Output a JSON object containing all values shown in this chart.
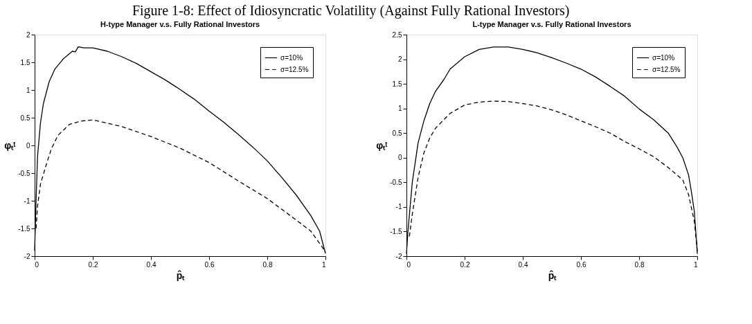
{
  "chart_data": [
    {
      "type": "line",
      "title": "H-type Manager v.s. Fully Rational Investors",
      "annotations": [
        "Figure 1-8: Effect of Idiosyncratic Volatility (Against Fully Rational Investors)"
      ],
      "xlabel": "p̂ₜ",
      "ylabel": "φₜᵗ",
      "xlim": [
        0,
        1
      ],
      "xticks": [
        0,
        0.2,
        0.4,
        0.6,
        0.8,
        1
      ],
      "ylim": [
        -2,
        2
      ],
      "yticks": [
        -2,
        -1.5,
        -1,
        -0.5,
        0,
        0.5,
        1,
        1.5,
        2
      ],
      "grid": false,
      "legend": "top right",
      "marker": "none",
      "series": [
        {
          "name": "σ=10%",
          "color": "#000000",
          "line_style": "solid",
          "x": [
            0,
            0.005,
            0.01,
            0.02,
            0.03,
            0.05,
            0.07,
            0.1,
            0.13,
            0.14,
            0.15,
            0.17,
            0.2,
            0.25,
            0.3,
            0.35,
            0.4,
            0.45,
            0.5,
            0.55,
            0.6,
            0.65,
            0.7,
            0.75,
            0.8,
            0.85,
            0.9,
            0.95,
            0.98,
            1.0
          ],
          "values": [
            -1.9,
            -1.0,
            -0.2,
            0.4,
            0.75,
            1.15,
            1.38,
            1.57,
            1.7,
            1.69,
            1.78,
            1.76,
            1.76,
            1.7,
            1.6,
            1.48,
            1.33,
            1.18,
            1.01,
            0.83,
            0.62,
            0.42,
            0.2,
            -0.03,
            -0.28,
            -0.58,
            -0.9,
            -1.27,
            -1.55,
            -1.95
          ]
        },
        {
          "name": "σ=12.5%",
          "color": "#000000",
          "line_style": "dashed",
          "x": [
            0.005,
            0.01,
            0.02,
            0.04,
            0.057,
            0.08,
            0.12,
            0.16,
            0.2,
            0.3,
            0.4,
            0.5,
            0.6,
            0.7,
            0.8,
            0.9,
            0.95,
            1.0
          ],
          "values": [
            -1.5,
            -1.1,
            -0.7,
            -0.35,
            -0.07,
            0.18,
            0.38,
            0.44,
            0.46,
            0.34,
            0.16,
            -0.05,
            -0.31,
            -0.64,
            -0.96,
            -1.35,
            -1.55,
            -1.92
          ]
        }
      ]
    },
    {
      "type": "line",
      "title": "L-type Manager v.s. Fully Rational Investors",
      "xlabel": "p̂ₜ",
      "ylabel": "φₜᵗ",
      "xlim": [
        0,
        1
      ],
      "xticks": [
        0,
        0.2,
        0.4,
        0.6,
        0.8,
        1
      ],
      "ylim": [
        -2,
        2.5
      ],
      "yticks": [
        -2,
        -1.5,
        -1,
        -0.5,
        0,
        0.5,
        1,
        1.5,
        2,
        2.5
      ],
      "grid": false,
      "legend": "top right",
      "marker": "none",
      "series": [
        {
          "name": "σ=10%",
          "color": "#000000",
          "line_style": "solid",
          "x": [
            0,
            0.005,
            0.02,
            0.04,
            0.06,
            0.08,
            0.1,
            0.13,
            0.15,
            0.2,
            0.25,
            0.3,
            0.35,
            0.4,
            0.45,
            0.5,
            0.55,
            0.6,
            0.65,
            0.7,
            0.75,
            0.8,
            0.85,
            0.9,
            0.93,
            0.95,
            0.97,
            0.98,
            0.99,
            1.0
          ],
          "values": [
            -1.95,
            -1.5,
            -0.5,
            0.3,
            0.75,
            1.1,
            1.35,
            1.6,
            1.8,
            2.05,
            2.2,
            2.25,
            2.25,
            2.2,
            2.13,
            2.03,
            1.92,
            1.8,
            1.64,
            1.45,
            1.25,
            0.99,
            0.77,
            0.5,
            0.22,
            0.0,
            -0.35,
            -0.7,
            -1.1,
            -1.95
          ]
        },
        {
          "name": "σ=12.5%",
          "color": "#000000",
          "line_style": "dashed",
          "x": [
            0.01,
            0.02,
            0.04,
            0.06,
            0.08,
            0.1,
            0.15,
            0.2,
            0.25,
            0.3,
            0.35,
            0.4,
            0.45,
            0.5,
            0.55,
            0.6,
            0.65,
            0.7,
            0.75,
            0.8,
            0.85,
            0.9,
            0.95,
            0.97,
            0.99,
            1.0
          ],
          "values": [
            -1.6,
            -1.15,
            -0.4,
            0.1,
            0.4,
            0.6,
            0.9,
            1.07,
            1.13,
            1.15,
            1.14,
            1.1,
            1.05,
            0.97,
            0.87,
            0.75,
            0.63,
            0.5,
            0.33,
            0.18,
            0.02,
            -0.2,
            -0.45,
            -0.75,
            -1.3,
            -1.9
          ]
        }
      ]
    }
  ]
}
